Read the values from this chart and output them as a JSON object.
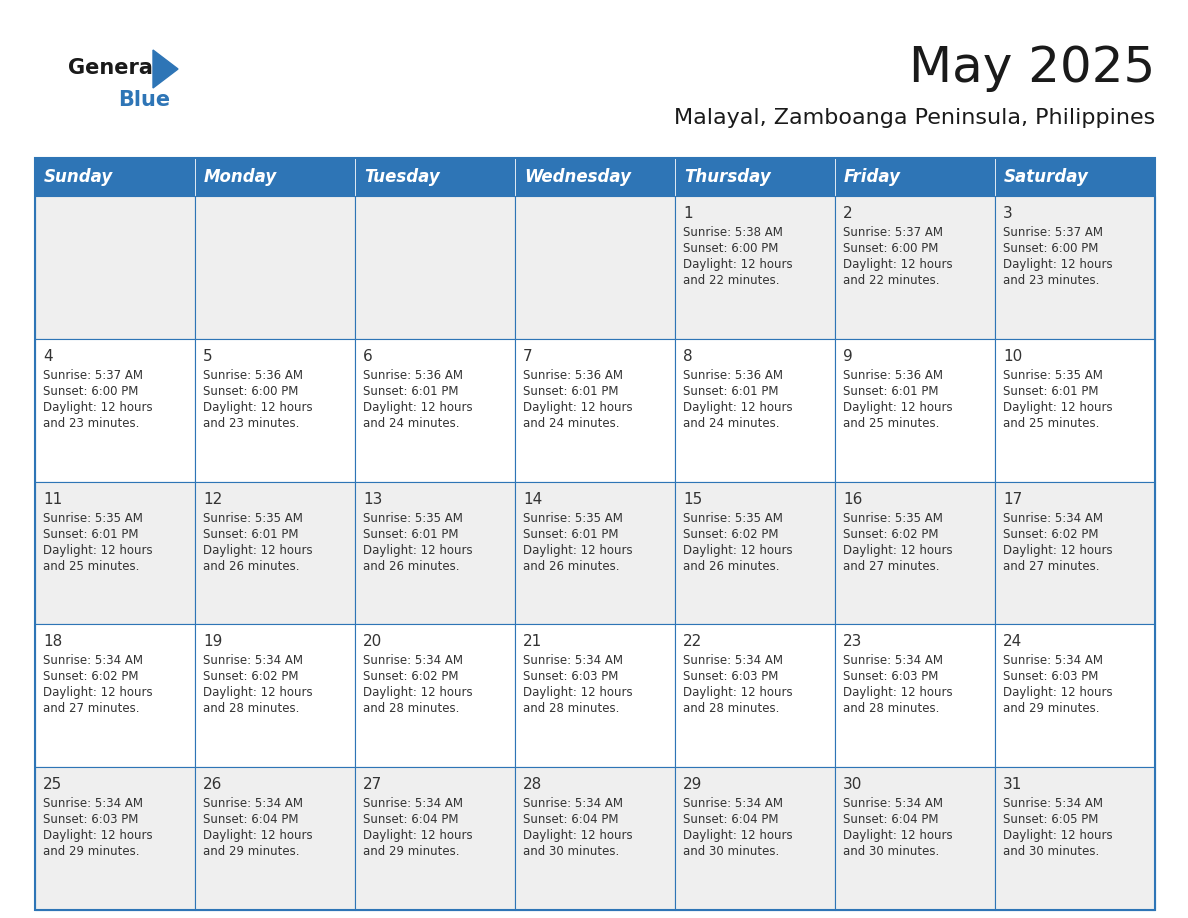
{
  "title": "May 2025",
  "subtitle": "Malayal, Zamboanga Peninsula, Philippines",
  "header_bg_color": "#2E75B6",
  "header_text_color": "#FFFFFF",
  "days_of_week": [
    "Sunday",
    "Monday",
    "Tuesday",
    "Wednesday",
    "Thursday",
    "Friday",
    "Saturday"
  ],
  "row_bg_colors": [
    "#EFEFEF",
    "#FFFFFF"
  ],
  "cell_border_color": "#2E75B6",
  "date_text_color": "#333333",
  "info_text_color": "#333333",
  "calendar_data": [
    [
      {
        "day": "",
        "sunrise": "",
        "sunset": "",
        "daylight": ""
      },
      {
        "day": "",
        "sunrise": "",
        "sunset": "",
        "daylight": ""
      },
      {
        "day": "",
        "sunrise": "",
        "sunset": "",
        "daylight": ""
      },
      {
        "day": "",
        "sunrise": "",
        "sunset": "",
        "daylight": ""
      },
      {
        "day": "1",
        "sunrise": "5:38 AM",
        "sunset": "6:00 PM",
        "daylight": "12 hours and 22 minutes."
      },
      {
        "day": "2",
        "sunrise": "5:37 AM",
        "sunset": "6:00 PM",
        "daylight": "12 hours and 22 minutes."
      },
      {
        "day": "3",
        "sunrise": "5:37 AM",
        "sunset": "6:00 PM",
        "daylight": "12 hours and 23 minutes."
      }
    ],
    [
      {
        "day": "4",
        "sunrise": "5:37 AM",
        "sunset": "6:00 PM",
        "daylight": "12 hours and 23 minutes."
      },
      {
        "day": "5",
        "sunrise": "5:36 AM",
        "sunset": "6:00 PM",
        "daylight": "12 hours and 23 minutes."
      },
      {
        "day": "6",
        "sunrise": "5:36 AM",
        "sunset": "6:01 PM",
        "daylight": "12 hours and 24 minutes."
      },
      {
        "day": "7",
        "sunrise": "5:36 AM",
        "sunset": "6:01 PM",
        "daylight": "12 hours and 24 minutes."
      },
      {
        "day": "8",
        "sunrise": "5:36 AM",
        "sunset": "6:01 PM",
        "daylight": "12 hours and 24 minutes."
      },
      {
        "day": "9",
        "sunrise": "5:36 AM",
        "sunset": "6:01 PM",
        "daylight": "12 hours and 25 minutes."
      },
      {
        "day": "10",
        "sunrise": "5:35 AM",
        "sunset": "6:01 PM",
        "daylight": "12 hours and 25 minutes."
      }
    ],
    [
      {
        "day": "11",
        "sunrise": "5:35 AM",
        "sunset": "6:01 PM",
        "daylight": "12 hours and 25 minutes."
      },
      {
        "day": "12",
        "sunrise": "5:35 AM",
        "sunset": "6:01 PM",
        "daylight": "12 hours and 26 minutes."
      },
      {
        "day": "13",
        "sunrise": "5:35 AM",
        "sunset": "6:01 PM",
        "daylight": "12 hours and 26 minutes."
      },
      {
        "day": "14",
        "sunrise": "5:35 AM",
        "sunset": "6:01 PM",
        "daylight": "12 hours and 26 minutes."
      },
      {
        "day": "15",
        "sunrise": "5:35 AM",
        "sunset": "6:02 PM",
        "daylight": "12 hours and 26 minutes."
      },
      {
        "day": "16",
        "sunrise": "5:35 AM",
        "sunset": "6:02 PM",
        "daylight": "12 hours and 27 minutes."
      },
      {
        "day": "17",
        "sunrise": "5:34 AM",
        "sunset": "6:02 PM",
        "daylight": "12 hours and 27 minutes."
      }
    ],
    [
      {
        "day": "18",
        "sunrise": "5:34 AM",
        "sunset": "6:02 PM",
        "daylight": "12 hours and 27 minutes."
      },
      {
        "day": "19",
        "sunrise": "5:34 AM",
        "sunset": "6:02 PM",
        "daylight": "12 hours and 28 minutes."
      },
      {
        "day": "20",
        "sunrise": "5:34 AM",
        "sunset": "6:02 PM",
        "daylight": "12 hours and 28 minutes."
      },
      {
        "day": "21",
        "sunrise": "5:34 AM",
        "sunset": "6:03 PM",
        "daylight": "12 hours and 28 minutes."
      },
      {
        "day": "22",
        "sunrise": "5:34 AM",
        "sunset": "6:03 PM",
        "daylight": "12 hours and 28 minutes."
      },
      {
        "day": "23",
        "sunrise": "5:34 AM",
        "sunset": "6:03 PM",
        "daylight": "12 hours and 28 minutes."
      },
      {
        "day": "24",
        "sunrise": "5:34 AM",
        "sunset": "6:03 PM",
        "daylight": "12 hours and 29 minutes."
      }
    ],
    [
      {
        "day": "25",
        "sunrise": "5:34 AM",
        "sunset": "6:03 PM",
        "daylight": "12 hours and 29 minutes."
      },
      {
        "day": "26",
        "sunrise": "5:34 AM",
        "sunset": "6:04 PM",
        "daylight": "12 hours and 29 minutes."
      },
      {
        "day": "27",
        "sunrise": "5:34 AM",
        "sunset": "6:04 PM",
        "daylight": "12 hours and 29 minutes."
      },
      {
        "day": "28",
        "sunrise": "5:34 AM",
        "sunset": "6:04 PM",
        "daylight": "12 hours and 30 minutes."
      },
      {
        "day": "29",
        "sunrise": "5:34 AM",
        "sunset": "6:04 PM",
        "daylight": "12 hours and 30 minutes."
      },
      {
        "day": "30",
        "sunrise": "5:34 AM",
        "sunset": "6:04 PM",
        "daylight": "12 hours and 30 minutes."
      },
      {
        "day": "31",
        "sunrise": "5:34 AM",
        "sunset": "6:05 PM",
        "daylight": "12 hours and 30 minutes."
      }
    ]
  ],
  "logo_triangle_color": "#2E75B6",
  "logo_general_color": "#1a1a1a",
  "logo_blue_color": "#2E75B6",
  "title_fontsize": 36,
  "subtitle_fontsize": 16,
  "header_fontsize": 12,
  "day_number_fontsize": 11,
  "cell_text_fontsize": 8.5
}
